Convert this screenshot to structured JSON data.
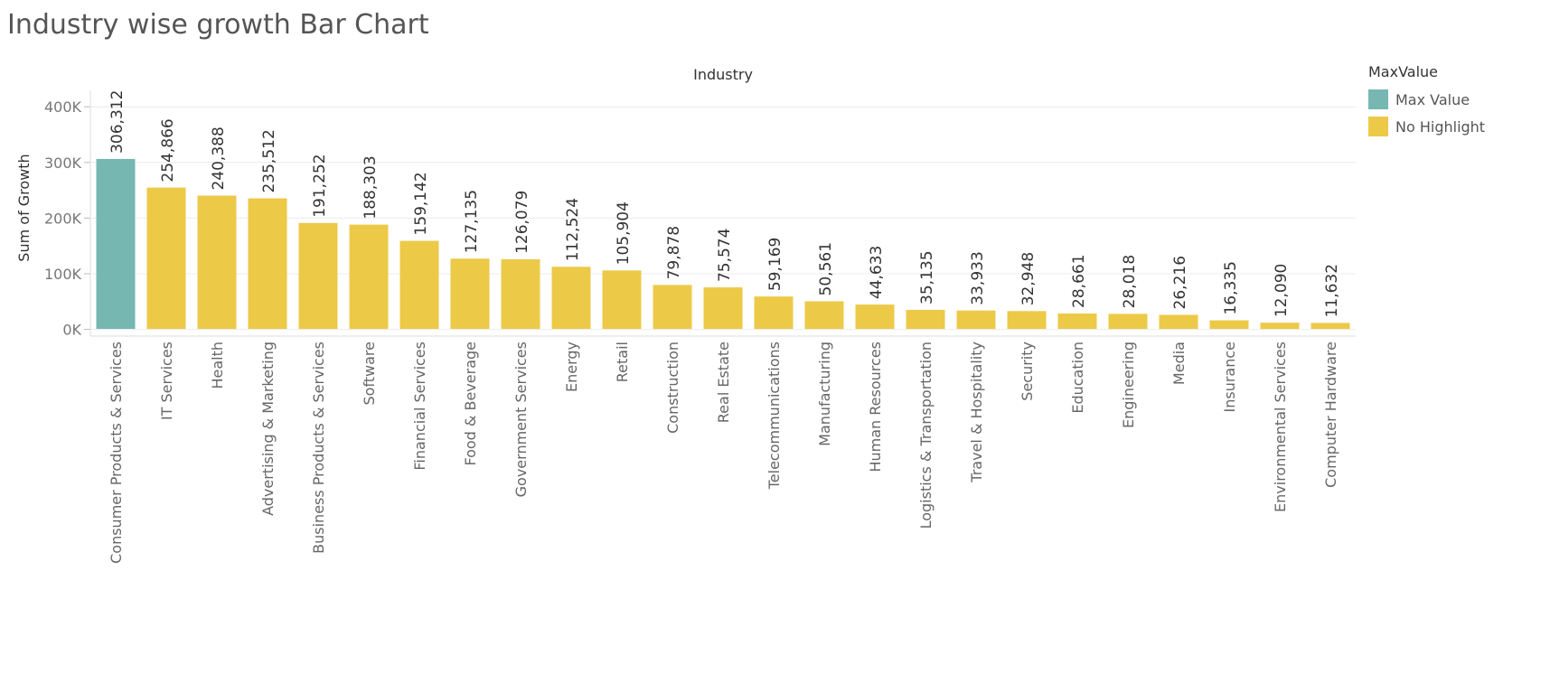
{
  "title": "Industry wise growth Bar Chart",
  "legend": {
    "title": "MaxValue",
    "items": [
      {
        "label": "Max Value",
        "color": "#76b7b2"
      },
      {
        "label": "No Highlight",
        "color": "#edc948"
      }
    ]
  },
  "chart_data": {
    "type": "bar",
    "title": "Industry wise growth Bar Chart",
    "xlabel": "Industry",
    "ylabel": "Sum of Growth",
    "ylim": [
      -15000,
      430000
    ],
    "yticks": [
      0,
      100000,
      200000,
      300000,
      400000
    ],
    "ytick_labels": [
      "0K",
      "100K",
      "200K",
      "300K",
      "400K"
    ],
    "grid": true,
    "legend_position": "top-right",
    "categories": [
      "Consumer Products & Services",
      "IT Services",
      "Health",
      "Advertising & Marketing",
      "Business Products & Services",
      "Software",
      "Financial Services",
      "Food & Beverage",
      "Government Services",
      "Energy",
      "Retail",
      "Construction",
      "Real Estate",
      "Telecommunications",
      "Manufacturing",
      "Human Resources",
      "Logistics & Transportation",
      "Travel & Hospitality",
      "Security",
      "Education",
      "Engineering",
      "Media",
      "Insurance",
      "Environmental Services",
      "Computer Hardware"
    ],
    "values": [
      306312,
      254866,
      240388,
      235512,
      191252,
      188303,
      159142,
      127135,
      126079,
      112524,
      105904,
      79878,
      75574,
      59169,
      50561,
      44633,
      35135,
      33933,
      32948,
      28661,
      28018,
      26216,
      16335,
      12090,
      11632
    ],
    "value_labels": [
      "306,312",
      "254,866",
      "240,388",
      "235,512",
      "191,252",
      "188,303",
      "159,142",
      "127,135",
      "126,079",
      "112,524",
      "105,904",
      "79,878",
      "75,574",
      "59,169",
      "50,561",
      "44,633",
      "35,135",
      "33,933",
      "32,948",
      "28,661",
      "28,018",
      "26,216",
      "16,335",
      "12,090",
      "11,632"
    ],
    "highlight": [
      "Max Value",
      "No Highlight",
      "No Highlight",
      "No Highlight",
      "No Highlight",
      "No Highlight",
      "No Highlight",
      "No Highlight",
      "No Highlight",
      "No Highlight",
      "No Highlight",
      "No Highlight",
      "No Highlight",
      "No Highlight",
      "No Highlight",
      "No Highlight",
      "No Highlight",
      "No Highlight",
      "No Highlight",
      "No Highlight",
      "No Highlight",
      "No Highlight",
      "No Highlight",
      "No Highlight",
      "No Highlight"
    ]
  }
}
